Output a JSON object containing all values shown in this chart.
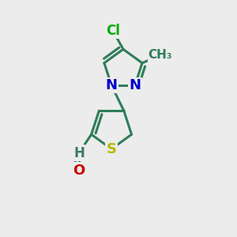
{
  "background_color": "#ececec",
  "bond_color": "#2e7d5a",
  "bond_width": 2.2,
  "atoms": {
    "S": {
      "color": "#b8b800",
      "fontsize": 13
    },
    "N": {
      "color": "#0000cc",
      "fontsize": 13
    },
    "O": {
      "color": "#cc0000",
      "fontsize": 13
    },
    "Cl": {
      "color": "#00aa00",
      "fontsize": 12
    },
    "H": {
      "color": "#3a7d5a",
      "fontsize": 12
    },
    "CH3": {
      "color": "#2e7d5a",
      "fontsize": 11
    }
  },
  "figsize": [
    3.0,
    3.0
  ],
  "dpi": 100
}
